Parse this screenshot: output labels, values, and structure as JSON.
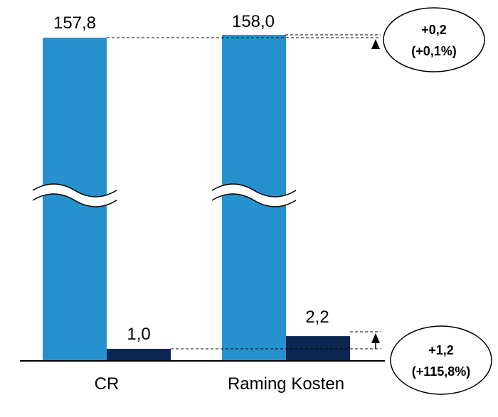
{
  "chart_data": {
    "type": "bar",
    "categories": [
      "CR",
      "Raming Kosten"
    ],
    "series": [
      {
        "values": [
          157.8,
          158.0
        ],
        "color": "#2591cd"
      },
      {
        "values": [
          1.0,
          2.2
        ],
        "color": "#0b2650"
      }
    ],
    "value_labels": {
      "light": [
        "157,8",
        "158,0"
      ],
      "dark": [
        "1,0",
        "2,2"
      ]
    },
    "axis_break": true,
    "annotations": [
      {
        "delta": "+0,2",
        "pct": "(+0,1%)"
      },
      {
        "delta": "+1,2",
        "pct": "(+115,8%)"
      }
    ],
    "grid": false
  }
}
